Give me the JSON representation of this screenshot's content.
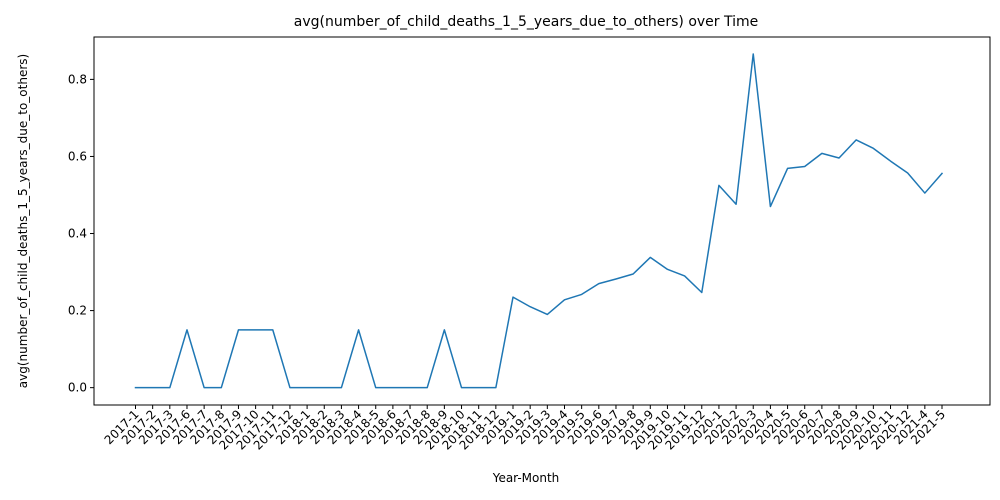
{
  "chart_data": {
    "type": "line",
    "title": "avg(number_of_child_deaths_1_5_years_due_to_others) over Time",
    "xlabel": "Year-Month",
    "ylabel": "avg(number_of_child_deaths_1_5_years_due_to_others)",
    "ylim": [
      -0.045,
      0.91
    ],
    "yticks": [
      0.0,
      0.2,
      0.4,
      0.6,
      0.8
    ],
    "ytick_labels": [
      "0.0",
      "0.2",
      "0.4",
      "0.6",
      "0.8"
    ],
    "grid": false,
    "line_color": "#1f77b4",
    "categories": [
      "2017-1",
      "2017-2",
      "2017-3",
      "2017-6",
      "2017-7",
      "2017-8",
      "2017-9",
      "2017-10",
      "2017-11",
      "2017-12",
      "2018-1",
      "2018-2",
      "2018-3",
      "2018-4",
      "2018-5",
      "2018-6",
      "2018-7",
      "2018-8",
      "2018-9",
      "2018-10",
      "2018-11",
      "2018-12",
      "2019-1",
      "2019-2",
      "2019-3",
      "2019-4",
      "2019-5",
      "2019-6",
      "2019-7",
      "2019-8",
      "2019-9",
      "2019-10",
      "2019-11",
      "2019-12",
      "2020-1",
      "2020-2",
      "2020-3",
      "2020-4",
      "2020-5",
      "2020-6",
      "2020-7",
      "2020-8",
      "2020-9",
      "2020-10",
      "2020-11",
      "2020-12",
      "2021-4",
      "2021-5"
    ],
    "values": [
      0.0,
      0.0,
      0.0,
      0.15,
      0.0,
      0.0,
      0.15,
      0.15,
      0.15,
      0.0,
      0.0,
      0.0,
      0.0,
      0.15,
      0.0,
      0.0,
      0.0,
      0.0,
      0.15,
      0.0,
      0.0,
      0.0,
      0.235,
      0.21,
      0.19,
      0.228,
      0.242,
      0.27,
      0.282,
      0.295,
      0.338,
      0.307,
      0.29,
      0.247,
      0.525,
      0.476,
      0.866,
      0.47,
      0.569,
      0.574,
      0.608,
      0.596,
      0.643,
      0.621,
      0.588,
      0.557,
      0.505,
      0.556
    ]
  }
}
